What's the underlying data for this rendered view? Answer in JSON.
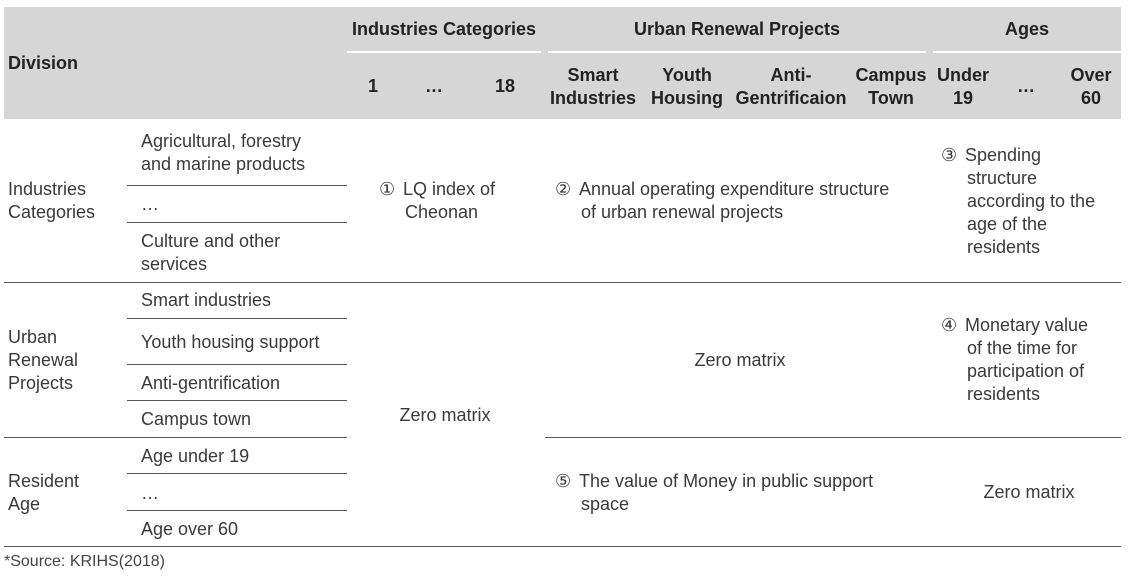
{
  "header": {
    "division": "Division",
    "groups": {
      "industries": "Industries Categories",
      "urban": "Urban Renewal Projects",
      "ages": "Ages"
    },
    "industries_cols": [
      "1",
      "…",
      "18"
    ],
    "urban_cols": [
      [
        "Smart",
        "Industries"
      ],
      [
        "Youth",
        "Housing"
      ],
      [
        "Anti-",
        "Gentrificaion"
      ],
      [
        "Campus",
        "Town"
      ]
    ],
    "ages_cols": [
      [
        "Under",
        "19"
      ],
      [
        "…"
      ],
      [
        "Over",
        "60"
      ]
    ]
  },
  "rows": {
    "industries": {
      "label": [
        "Industries",
        "Categories"
      ],
      "items": [
        [
          "Agricultural, forestry",
          "and marine products"
        ],
        [
          "…"
        ],
        [
          "Culture and other",
          "services"
        ]
      ]
    },
    "urban": {
      "label": [
        "Urban",
        "Renewal",
        "Projects"
      ],
      "items": [
        "Smart industries",
        "Youth housing support",
        "Anti-gentrification",
        "Campus town"
      ]
    },
    "age": {
      "label": [
        "Resident",
        "Age"
      ],
      "items": [
        "Age under 19",
        "…",
        "Age over 60"
      ]
    }
  },
  "cells": {
    "c1": {
      "num": "①",
      "lines": [
        "LQ index of",
        "Cheonan"
      ]
    },
    "c2": {
      "num": "②",
      "lines": [
        "Annual operating expenditure structure",
        "of urban renewal projects"
      ]
    },
    "c3": {
      "num": "③",
      "lines": [
        "Spending",
        "structure",
        "according to the",
        "age of the",
        "residents"
      ]
    },
    "c4": {
      "num": "④",
      "lines": [
        "Monetary value",
        "of the time for",
        "participation of",
        "residents"
      ]
    },
    "c5": {
      "num": "⑤",
      "lines": [
        "The value of Money in public support",
        "space"
      ]
    },
    "zero_a": "Zero matrix",
    "zero_b": "Zero matrix",
    "zero_c": "Zero matrix"
  },
  "source": "*Source: KRIHS(2018)"
}
